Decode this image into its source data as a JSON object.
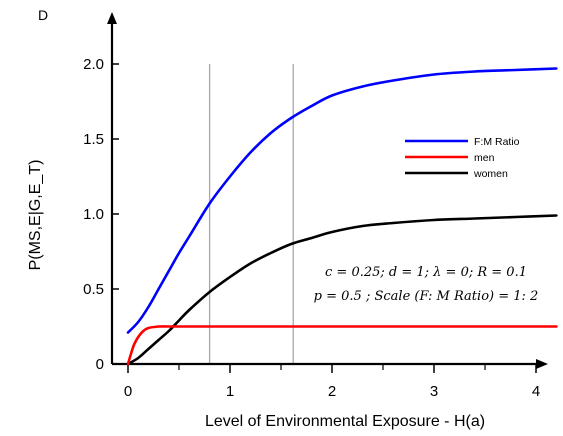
{
  "chart_data": {
    "type": "line",
    "panel_label": "D",
    "title": "",
    "xlabel": "Level of Environmental Exposure - H(a)",
    "ylabel": "P(MS,E|G,E_T)",
    "xlim": [
      0,
      4.2
    ],
    "ylim": [
      0,
      2.0
    ],
    "x_ticks": [
      0,
      1,
      2,
      3,
      4
    ],
    "x_tick_labels": [
      "0",
      "1",
      "2",
      "3",
      "4"
    ],
    "y_ticks": [
      0,
      0.5,
      1.0,
      1.5,
      2.0
    ],
    "y_tick_labels": [
      "0",
      "0.5",
      "1.0",
      "1.5",
      "2.0"
    ],
    "grid": false,
    "legend_position": "upper-right",
    "vertical_reference_lines": [
      0.8,
      1.62
    ],
    "series": [
      {
        "name": "F:M Ratio",
        "color": "#0000ff",
        "x": [
          0,
          0.1,
          0.2,
          0.3,
          0.4,
          0.5,
          0.6,
          0.8,
          1.0,
          1.2,
          1.4,
          1.6,
          1.8,
          2.0,
          2.3,
          2.6,
          3.0,
          3.4,
          3.8,
          4.2
        ],
        "y": [
          0.21,
          0.28,
          0.38,
          0.5,
          0.62,
          0.74,
          0.85,
          1.07,
          1.25,
          1.41,
          1.54,
          1.64,
          1.72,
          1.79,
          1.85,
          1.89,
          1.93,
          1.95,
          1.96,
          1.97
        ]
      },
      {
        "name": "men",
        "color": "#ff0000",
        "x": [
          0,
          0.03,
          0.06,
          0.1,
          0.15,
          0.2,
          0.3,
          0.4,
          0.6,
          1.0,
          2.0,
          3.0,
          4.2
        ],
        "y": [
          0,
          0.07,
          0.13,
          0.18,
          0.22,
          0.24,
          0.25,
          0.25,
          0.25,
          0.25,
          0.25,
          0.25,
          0.25
        ]
      },
      {
        "name": "women",
        "color": "#000000",
        "x": [
          0,
          0.1,
          0.2,
          0.3,
          0.4,
          0.5,
          0.6,
          0.8,
          1.0,
          1.2,
          1.4,
          1.6,
          1.8,
          2.0,
          2.3,
          2.6,
          3.0,
          3.4,
          3.8,
          4.2
        ],
        "y": [
          0,
          0.04,
          0.1,
          0.16,
          0.22,
          0.29,
          0.36,
          0.48,
          0.58,
          0.67,
          0.74,
          0.8,
          0.84,
          0.88,
          0.92,
          0.94,
          0.96,
          0.97,
          0.98,
          0.99
        ]
      }
    ],
    "annotations": [
      "c = 0.25;  d = 1;  λ = 0;  R = 0.1",
      "p = 0.5 ;  Scale (F: M Ratio) = 1: 2"
    ]
  }
}
